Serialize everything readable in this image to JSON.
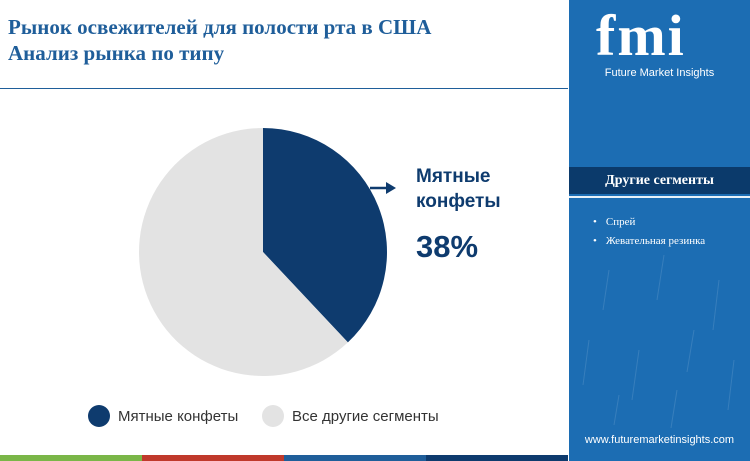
{
  "header": {
    "title_line1": "Рынок освежителей для полости рта в США",
    "title_line2": "Анализ рынка  по типу"
  },
  "chart_data": {
    "type": "pie",
    "title": "Рынок освежителей для полости рта в США Анализ рынка  по типу",
    "slices": [
      {
        "label": "Мятные конфеты",
        "value": 38,
        "color": "#0e3b6e"
      },
      {
        "label": "Все другие сегменты",
        "value": 62,
        "color": "#e3e3e3"
      }
    ],
    "callout": {
      "label_line1": "Мятные",
      "label_line2": "конфеты",
      "value_text": "38%"
    },
    "legend": [
      {
        "label": "Мятные конфеты",
        "color": "#0e3b6e"
      },
      {
        "label": "Все другие сегменты",
        "color": "#e3e3e3"
      }
    ],
    "legend_position": "bottom"
  },
  "sidebar": {
    "logo": "fmi",
    "brand": "Future Market Insights",
    "heading": "Другие сегменты",
    "items": [
      "Спрей",
      "Жевательная резинка"
    ],
    "website": "www.futuremarketinsights.com"
  },
  "colors": {
    "accent": "#1f5e9a",
    "sidebar": "#1c6db3",
    "sidebar_heading": "#0b3a6b",
    "bottom_bar": [
      "#7ab648",
      "#c0392b",
      "#1f5e9a",
      "#0e3b6e"
    ]
  }
}
